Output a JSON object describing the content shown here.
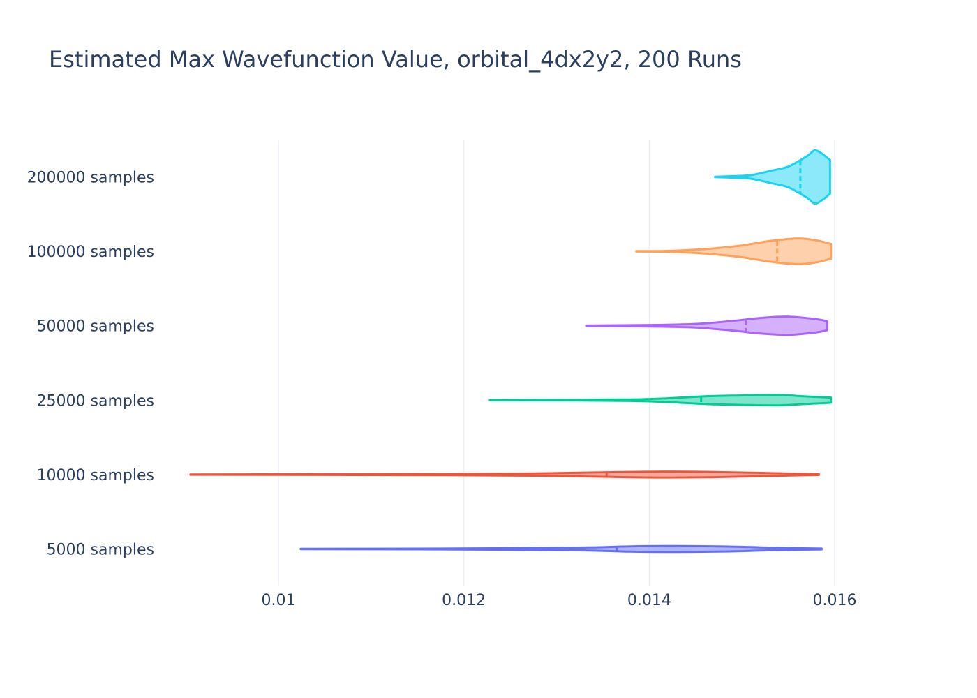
{
  "chart_data": {
    "type": "violin",
    "title": "Estimated Max Wavefunction Value, orbital_4dx2y2, 200 Runs",
    "xlabel": "",
    "ylabel": "",
    "x_ticks": [
      0.01,
      0.012,
      0.014,
      0.016
    ],
    "x_tick_labels": [
      "0.01",
      "0.012",
      "0.014",
      "0.016"
    ],
    "xlim": [
      0.00905,
      0.0172
    ],
    "grid": true,
    "legend": "none",
    "series": [
      {
        "name": "5000 samples",
        "color": "#636efa",
        "min": 0.01024,
        "max": 0.01586,
        "median": 0.01365,
        "density": [
          [
            0.01024,
            0.2
          ],
          [
            0.0115,
            0.5
          ],
          [
            0.0125,
            1.0
          ],
          [
            0.0133,
            2.0
          ],
          [
            0.0138,
            3.6
          ],
          [
            0.0143,
            4.0
          ],
          [
            0.0148,
            3.4
          ],
          [
            0.0152,
            2.2
          ],
          [
            0.0156,
            1.0
          ],
          [
            0.01586,
            0.6
          ]
        ]
      },
      {
        "name": "10000 samples",
        "color": "#ef553b",
        "min": 0.00905,
        "max": 0.01583,
        "median": 0.01354,
        "density": [
          [
            0.00905,
            0.2
          ],
          [
            0.0105,
            0.5
          ],
          [
            0.0118,
            0.8
          ],
          [
            0.0128,
            1.5
          ],
          [
            0.0136,
            3.2
          ],
          [
            0.0141,
            4.0
          ],
          [
            0.0147,
            3.5
          ],
          [
            0.0152,
            2.3
          ],
          [
            0.0156,
            1.0
          ],
          [
            0.01583,
            0.6
          ]
        ]
      },
      {
        "name": "25000 samples",
        "color": "#00cc96",
        "min": 0.01228,
        "max": 0.01596,
        "median": 0.01456,
        "density": [
          [
            0.01228,
            0.2
          ],
          [
            0.0132,
            0.5
          ],
          [
            0.0138,
            1.0
          ],
          [
            0.0142,
            2.6
          ],
          [
            0.0146,
            5.2
          ],
          [
            0.015,
            6.4
          ],
          [
            0.0154,
            7.0
          ],
          [
            0.0157,
            5.0
          ],
          [
            0.01596,
            3.5
          ]
        ]
      },
      {
        "name": "50000 samples",
        "color": "#ab63fa",
        "min": 0.01332,
        "max": 0.01592,
        "median": 0.01504,
        "density": [
          [
            0.01332,
            0.3
          ],
          [
            0.014,
            1.0
          ],
          [
            0.0145,
            2.5
          ],
          [
            0.0149,
            6.5
          ],
          [
            0.0152,
            10.5
          ],
          [
            0.0155,
            12.3
          ],
          [
            0.0158,
            9.0
          ],
          [
            0.01592,
            6.0
          ]
        ]
      },
      {
        "name": "100000 samples",
        "color": "#ffa15a",
        "min": 0.01386,
        "max": 0.01596,
        "median": 0.01538,
        "density": [
          [
            0.01386,
            0.3
          ],
          [
            0.0142,
            0.6
          ],
          [
            0.0146,
            3.0
          ],
          [
            0.015,
            8.0
          ],
          [
            0.0153,
            14.0
          ],
          [
            0.0156,
            17.5
          ],
          [
            0.0158,
            15.0
          ],
          [
            0.01596,
            10.0
          ]
        ]
      },
      {
        "name": "200000 samples",
        "color": "#19d3f3",
        "min": 0.01471,
        "max": 0.01595,
        "median": 0.01563,
        "density": [
          [
            0.01471,
            0.3
          ],
          [
            0.0149,
            1.0
          ],
          [
            0.0151,
            2.5
          ],
          [
            0.0153,
            8.0
          ],
          [
            0.0155,
            14.0
          ],
          [
            0.0157,
            28.0
          ],
          [
            0.0158,
            36.0
          ],
          [
            0.01595,
            23.0
          ]
        ]
      }
    ]
  }
}
